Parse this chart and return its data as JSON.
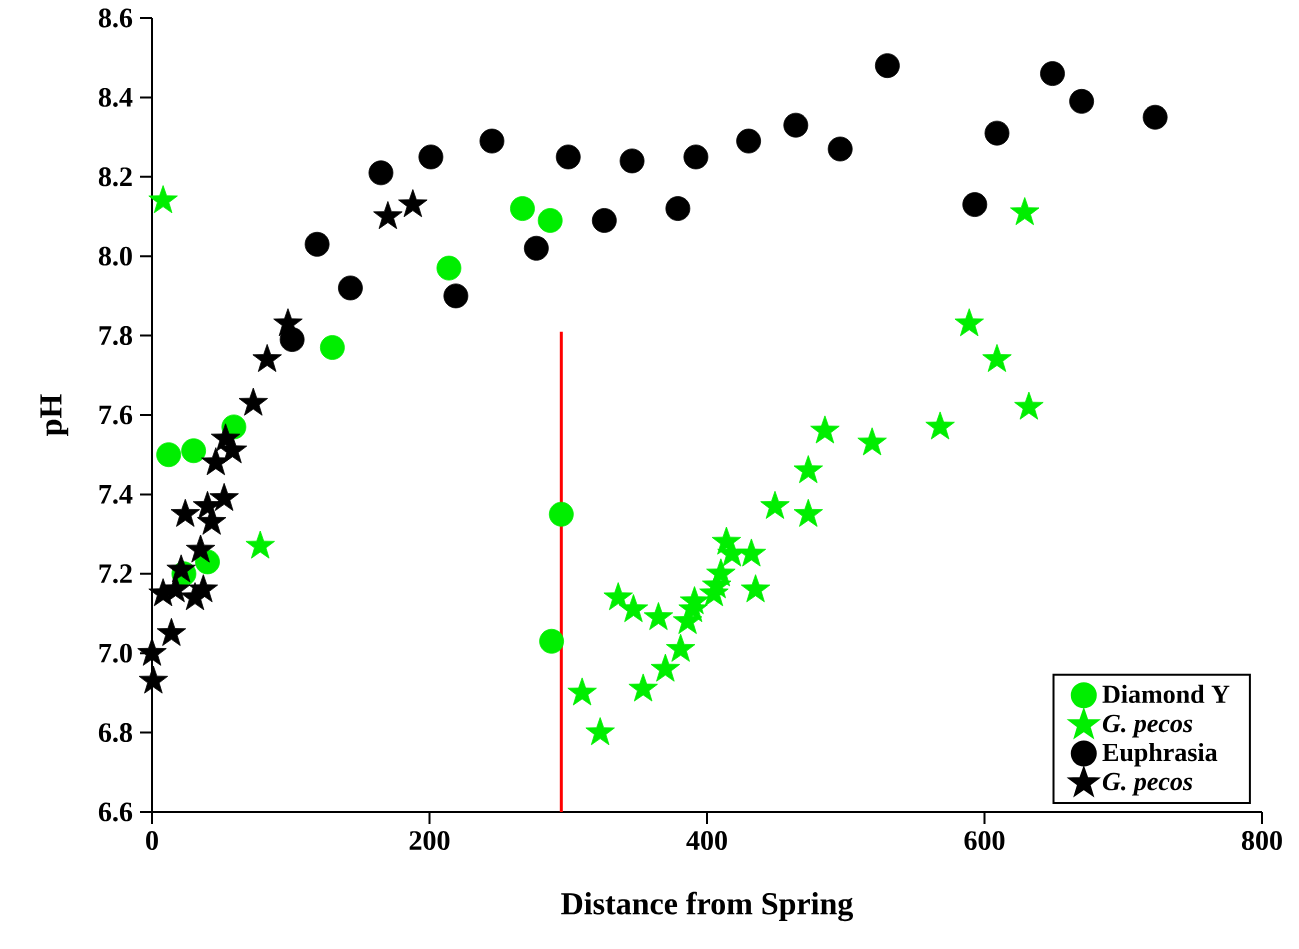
{
  "chart_data": {
    "type": "scatter",
    "xlabel": "Distance from Spring",
    "ylabel": "pH",
    "xlim": [
      0,
      800
    ],
    "xticks": [
      0,
      200,
      400,
      600,
      800
    ],
    "ylim": [
      6.6,
      8.6
    ],
    "yticks": [
      6.6,
      6.8,
      {
        "value": 7,
        "label": "7.0"
      },
      7.2,
      7.4,
      7.6,
      7.8,
      {
        "value": 8,
        "label": "8.0"
      },
      8.2,
      8.4,
      8.6
    ],
    "grid": false,
    "legend": "bottom right",
    "ref_lines": [
      {
        "axis": "x",
        "value": 295,
        "color": "#ff0000"
      }
    ],
    "series": [
      {
        "name": "Diamond Y",
        "color": "#00ee00",
        "marker": "circle",
        "x": [
          12,
          30,
          59,
          130,
          214,
          267,
          287,
          295,
          288,
          23,
          40
        ],
        "values": [
          7.5,
          7.51,
          7.57,
          7.77,
          7.97,
          8.12,
          8.09,
          7.35,
          7.03,
          7.2,
          7.23
        ]
      },
      {
        "name": "*G. pecos*",
        "color": "#00ee00",
        "marker": "star",
        "x": [
          8,
          78,
          310,
          323,
          336,
          347,
          365,
          354,
          370,
          381,
          386,
          390,
          391,
          405,
          407,
          410,
          414,
          418,
          432,
          435,
          449,
          473,
          473,
          485,
          519,
          568,
          589,
          609,
          632,
          629
        ],
        "values": [
          8.14,
          7.27,
          6.9,
          6.8,
          7.14,
          7.11,
          7.09,
          6.91,
          6.96,
          7.01,
          7.08,
          7.11,
          7.13,
          7.15,
          7.17,
          7.2,
          7.28,
          7.25,
          7.25,
          7.16,
          7.37,
          7.46,
          7.35,
          7.56,
          7.53,
          7.57,
          7.83,
          7.74,
          7.62,
          8.11
        ]
      },
      {
        "name": "Euphrasia",
        "color": "#000000",
        "marker": "circle",
        "x": [
          101,
          119,
          143,
          165,
          201,
          219,
          245,
          277,
          300,
          326,
          346,
          379,
          392,
          430,
          464,
          496,
          530,
          593,
          609,
          649,
          670,
          723
        ],
        "values": [
          7.79,
          8.03,
          7.92,
          8.21,
          8.25,
          7.9,
          8.29,
          8.02,
          8.25,
          8.09,
          8.24,
          8.12,
          8.25,
          8.29,
          8.33,
          8.27,
          8.48,
          8.13,
          8.31,
          8.46,
          8.39,
          8.35
        ]
      },
      {
        "name": "*G. pecos*",
        "color": "#000000",
        "marker": "star",
        "x": [
          0,
          1,
          14,
          8,
          17,
          21,
          31,
          37,
          35,
          24,
          40,
          43,
          52,
          46,
          58,
          53,
          73,
          83,
          98,
          170,
          188
        ],
        "values": [
          7.0,
          6.93,
          7.05,
          7.15,
          7.16,
          7.21,
          7.14,
          7.16,
          7.26,
          7.35,
          7.37,
          7.33,
          7.39,
          7.48,
          7.51,
          7.54,
          7.63,
          7.74,
          7.83,
          8.1,
          8.13
        ]
      }
    ]
  }
}
